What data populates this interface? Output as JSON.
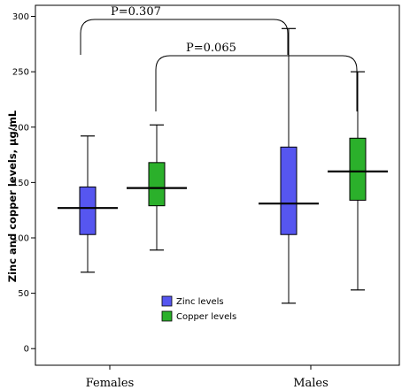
{
  "chart_data": {
    "type": "boxplot",
    "ylabel": "Zinc and copper levels, μg/mL",
    "categories": [
      "Females",
      "Males"
    ],
    "ylim": [
      -15,
      310
    ],
    "yticks": [
      0,
      50,
      100,
      150,
      200,
      250,
      300
    ],
    "series": [
      {
        "name": "Zinc levels",
        "color": "#5656f0",
        "boxes": [
          {
            "min": 69,
            "q1": 103,
            "median": 127,
            "q3": 146,
            "max": 192
          },
          {
            "min": 41,
            "q1": 103,
            "median": 131,
            "q3": 182,
            "max": 289
          }
        ]
      },
      {
        "name": "Copper levels",
        "color": "#2bb02b",
        "boxes": [
          {
            "min": 89,
            "q1": 129,
            "median": 145,
            "q3": 168,
            "max": 202
          },
          {
            "min": 53,
            "q1": 134,
            "median": 160,
            "q3": 190,
            "max": 250
          }
        ]
      }
    ],
    "annotations": [
      {
        "text": "P=0.307",
        "pair": "zinc"
      },
      {
        "text": "P=0.065",
        "pair": "copper"
      }
    ],
    "legend_position": "center"
  }
}
